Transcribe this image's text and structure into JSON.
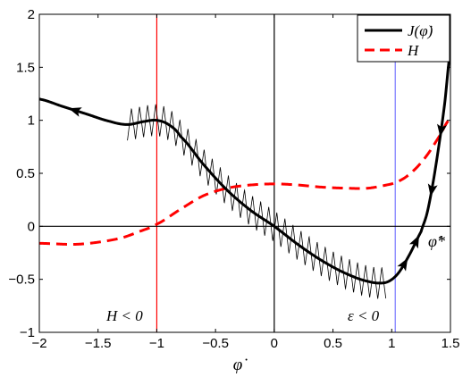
{
  "chart_data": {
    "type": "line",
    "xlabel": "φ̇",
    "xlim": [
      -2,
      1.5
    ],
    "ylim": [
      -1,
      2
    ],
    "xticks": [
      -2,
      -1.5,
      -1,
      -0.5,
      0,
      0.5,
      1,
      1.5
    ],
    "xtick_labels": [
      "−2",
      "−1.5",
      "−1",
      "−0.5",
      "0",
      "0.5",
      "1",
      "1.5"
    ],
    "yticks": [
      -1,
      -0.5,
      0,
      0.5,
      1,
      1.5,
      2
    ],
    "ytick_labels": [
      "−1",
      "−0.5",
      "0",
      "0.5",
      "1",
      "1.5",
      "2"
    ],
    "legend_position": "top-right",
    "legend": [
      {
        "label": "J(φ̇)",
        "color": "#000000",
        "dash": "solid"
      },
      {
        "label": "H",
        "color": "#ff0000",
        "dash": "dashed"
      }
    ],
    "series": [
      {
        "name": "J(φ̇)",
        "color": "#000000",
        "x": [
          -2.0,
          -1.8,
          -1.6,
          -1.4,
          -1.25,
          -1.1,
          -1.0,
          -0.9,
          -0.8,
          -0.6,
          -0.4,
          -0.2,
          0.0,
          0.2,
          0.4,
          0.6,
          0.8,
          0.95,
          1.05,
          1.15,
          1.25,
          1.3,
          1.35,
          1.4,
          1.45,
          1.5
        ],
        "y": [
          1.2,
          1.13,
          1.06,
          0.99,
          0.96,
          0.99,
          1.0,
          0.96,
          0.85,
          0.58,
          0.34,
          0.15,
          0.0,
          -0.17,
          -0.32,
          -0.44,
          -0.52,
          -0.53,
          -0.45,
          -0.27,
          -0.05,
          0.12,
          0.4,
          0.75,
          1.15,
          1.65
        ]
      },
      {
        "name": "H",
        "color": "#ff0000",
        "x": [
          -2.0,
          -1.7,
          -1.5,
          -1.3,
          -1.15,
          -1.0,
          -0.8,
          -0.6,
          -0.4,
          -0.2,
          0.0,
          0.2,
          0.4,
          0.6,
          0.8,
          1.0,
          1.1,
          1.2,
          1.3,
          1.4,
          1.5
        ],
        "y": [
          -0.16,
          -0.17,
          -0.15,
          -0.11,
          -0.05,
          0.02,
          0.16,
          0.29,
          0.36,
          0.39,
          0.4,
          0.39,
          0.37,
          0.36,
          0.36,
          0.4,
          0.45,
          0.54,
          0.67,
          0.84,
          1.02
        ]
      }
    ],
    "oscillation": {
      "x_start": -1.25,
      "x_end": 0.95,
      "cycles": 32,
      "amplitude": 0.15,
      "color": "#000000"
    },
    "vertical_lines": [
      {
        "x": -1.0,
        "color": "#ff0000"
      },
      {
        "x": 0.0,
        "color": "#000000"
      },
      {
        "x": 1.03,
        "color": "#7777ff"
      }
    ],
    "horizontal_lines": [
      {
        "y": 0.0,
        "color": "#000000"
      }
    ],
    "arrows": [
      {
        "x": -1.7,
        "direction": "left"
      },
      {
        "x": 1.11,
        "direction": "up"
      },
      {
        "x": 1.21,
        "direction": "up"
      },
      {
        "x": 1.34,
        "direction": "down"
      },
      {
        "x": 1.42,
        "direction": "down"
      }
    ],
    "annotations": [
      {
        "text": "H < 0"
      },
      {
        "text": "ε < 0"
      },
      {
        "text": "φ̇*"
      }
    ]
  }
}
